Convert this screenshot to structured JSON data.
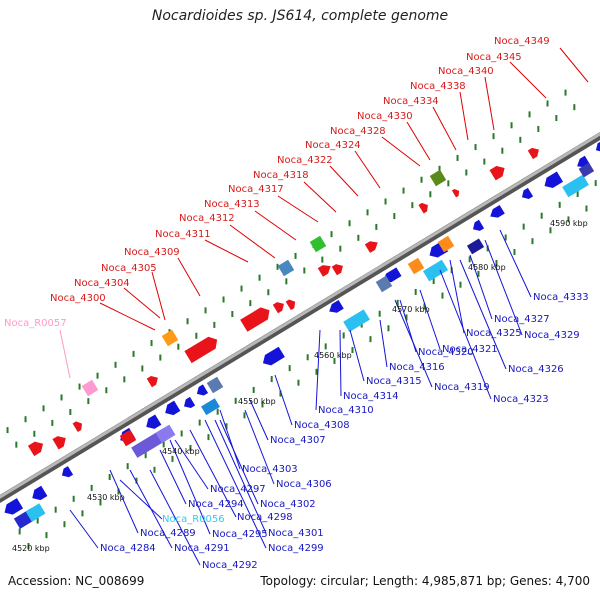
{
  "title": "Nocardioides sp. JS614, complete genome",
  "accession_label": "Accession: NC_008699",
  "summary_label": "Topology: circular; Length: 4,985,871 bp; Genes: 4,700",
  "kbp_ticks": [
    "4520 kbp",
    "4530 kbp",
    "4540 kbp",
    "4550 kbp",
    "4560 kbp",
    "4570 kbp",
    "4580 kbp",
    "4590 kbp"
  ],
  "genes_top": [
    "Noca_R0057",
    "Noca_4300",
    "Noca_4304",
    "Noca_4305",
    "Noca_4309",
    "Noca_4311",
    "Noca_4312",
    "Noca_4313",
    "Noca_4317",
    "Noca_4318",
    "Noca_4322",
    "Noca_4324",
    "Noca_4328",
    "Noca_4330",
    "Noca_4334",
    "Noca_4338",
    "Noca_4340",
    "Noca_4345",
    "Noca_4349"
  ],
  "genes_bottom": [
    "Noca_4284",
    "Noca_4289",
    "Noca_R0056",
    "Noca_4291",
    "Noca_4292",
    "Noca_4294",
    "Noca_4295",
    "Noca_4297",
    "Noca_4298",
    "Noca_4299",
    "Noca_4301",
    "Noca_4302",
    "Noca_4303",
    "Noca_4306",
    "Noca_4307",
    "Noca_4308",
    "Noca_4310",
    "Noca_4314",
    "Noca_4315",
    "Noca_4316",
    "Noca_4319",
    "Noca_4320",
    "Noca_4321",
    "Noca_4323",
    "Noca_4325",
    "Noca_4326",
    "Noca_4327",
    "Noca_4329",
    "Noca_4333"
  ],
  "colors": {
    "forward_gene": "#e8141a",
    "reverse_gene": "#1414d8",
    "forward_rna": "#ff9ad0",
    "reverse_rna": "#36c8f0",
    "backbone": "#9a9a9a",
    "tick_marks": "#2a7a2a"
  }
}
